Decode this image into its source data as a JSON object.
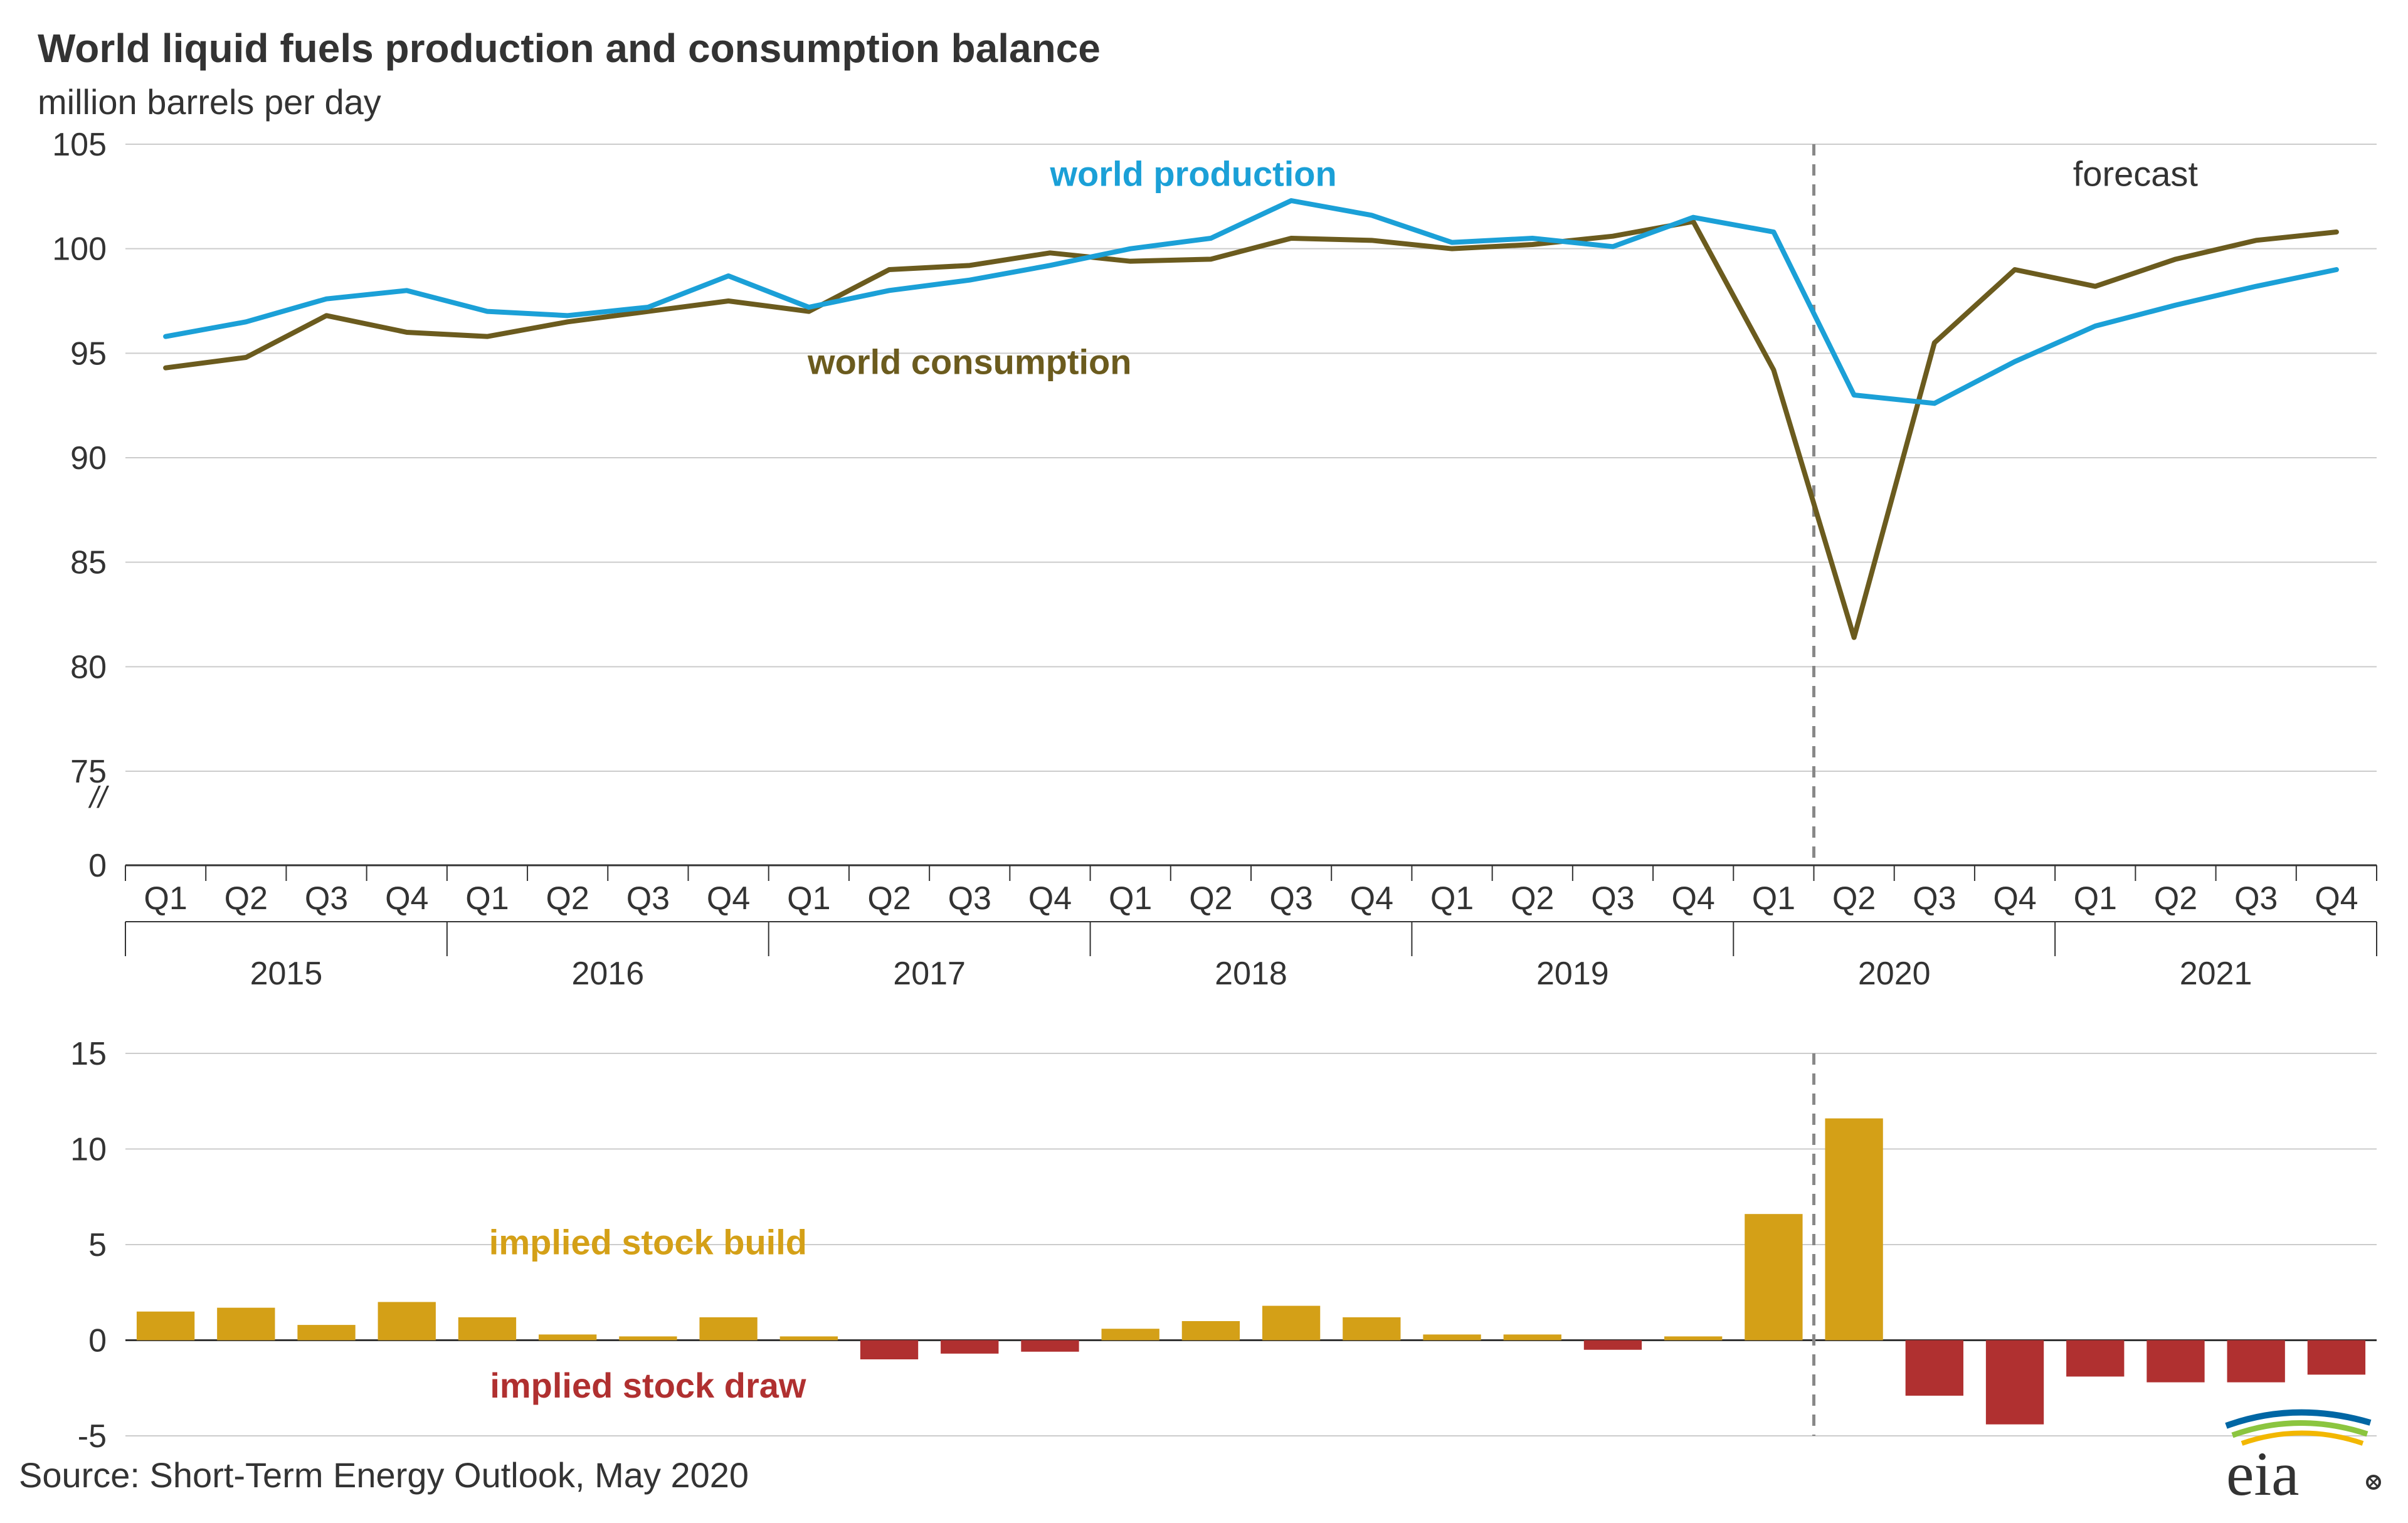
{
  "title": "World liquid fuels production and consumption balance",
  "subtitle": "million barrels per day",
  "source": "Source: Short-Term Energy Outlook, May 2020",
  "colors": {
    "production": "#1ba0d7",
    "consumption": "#6b5b1e",
    "bar_build": "#d4a017",
    "bar_draw": "#b03030",
    "grid": "#cccccc",
    "axis_text": "#333333",
    "forecast_line": "#888888",
    "tick": "#333333",
    "background": "#ffffff"
  },
  "fonts": {
    "title_size": 64,
    "subtitle_size": 56,
    "axis_tick_size": 52,
    "label_size": 56,
    "source_size": 56
  },
  "top_chart": {
    "type": "line",
    "ylim": [
      0,
      105
    ],
    "break_below": 75,
    "ytick_start": 75,
    "ytick_step": 5,
    "yticks": [
      0,
      75,
      80,
      85,
      90,
      95,
      100,
      105
    ],
    "break_symbol": "//",
    "x_categories": [
      "Q1",
      "Q2",
      "Q3",
      "Q4",
      "Q1",
      "Q2",
      "Q3",
      "Q4",
      "Q1",
      "Q2",
      "Q3",
      "Q4",
      "Q1",
      "Q2",
      "Q3",
      "Q4",
      "Q1",
      "Q2",
      "Q3",
      "Q4",
      "Q1",
      "Q2",
      "Q3",
      "Q4",
      "Q1",
      "Q2",
      "Q3",
      "Q4"
    ],
    "years": [
      "2015",
      "2016",
      "2017",
      "2018",
      "2019",
      "2020",
      "2021"
    ],
    "forecast_start_index": 21,
    "forecast_label": "forecast",
    "series": {
      "production": {
        "label": "world production",
        "color": "#1ba0d7",
        "line_width": 8,
        "values": [
          95.8,
          96.5,
          97.6,
          98.0,
          97.0,
          96.8,
          97.2,
          98.7,
          97.2,
          98.0,
          98.5,
          99.2,
          100.0,
          100.5,
          102.3,
          101.6,
          100.3,
          100.5,
          100.1,
          101.5,
          100.8,
          93.0,
          92.6,
          94.6,
          96.3,
          97.3,
          98.2,
          99.0
        ]
      },
      "consumption": {
        "label": "world consumption",
        "color": "#6b5b1e",
        "line_width": 8,
        "values": [
          94.3,
          94.8,
          96.8,
          96.0,
          95.8,
          96.5,
          97.0,
          97.5,
          97.0,
          99.0,
          99.2,
          99.8,
          99.4,
          99.5,
          100.5,
          100.4,
          100.0,
          100.2,
          100.6,
          101.3,
          94.2,
          81.4,
          95.5,
          99.0,
          98.2,
          99.5,
          100.4,
          100.8
        ]
      }
    },
    "label_positions": {
      "production": {
        "x_idx": 11,
        "y": 103
      },
      "consumption": {
        "x_idx": 10,
        "y": 94
      },
      "forecast": {
        "x_idx": 24.5,
        "y": 103
      }
    },
    "grid": true,
    "grid_color": "#cccccc"
  },
  "bottom_chart": {
    "type": "bar",
    "ylim": [
      -5,
      15
    ],
    "ytick_step": 5,
    "yticks": [
      -5,
      0,
      5,
      10,
      15
    ],
    "bar_width": 0.72,
    "values": [
      1.5,
      1.7,
      0.8,
      2.0,
      1.2,
      0.3,
      0.2,
      1.2,
      0.2,
      -1.0,
      -0.7,
      -0.6,
      0.6,
      1.0,
      1.8,
      1.2,
      0.3,
      0.3,
      -0.5,
      0.2,
      6.6,
      11.6,
      -2.9,
      -4.4,
      -1.9,
      -2.2,
      -2.2,
      -1.8
    ],
    "colors_positive": "#d4a017",
    "colors_negative": "#b03030",
    "labels": {
      "build": "implied stock  build",
      "draw": "implied stock draw"
    },
    "label_positions": {
      "build": {
        "x_idx": 6,
        "y": 4.5
      },
      "draw": {
        "x_idx": 6,
        "y": -3
      }
    },
    "grid": true,
    "grid_color": "#cccccc",
    "forecast_start_index": 21
  },
  "logo": {
    "text": "eia",
    "swoosh_colors": [
      "#0066a4",
      "#8bc53f",
      "#f2b700"
    ]
  }
}
